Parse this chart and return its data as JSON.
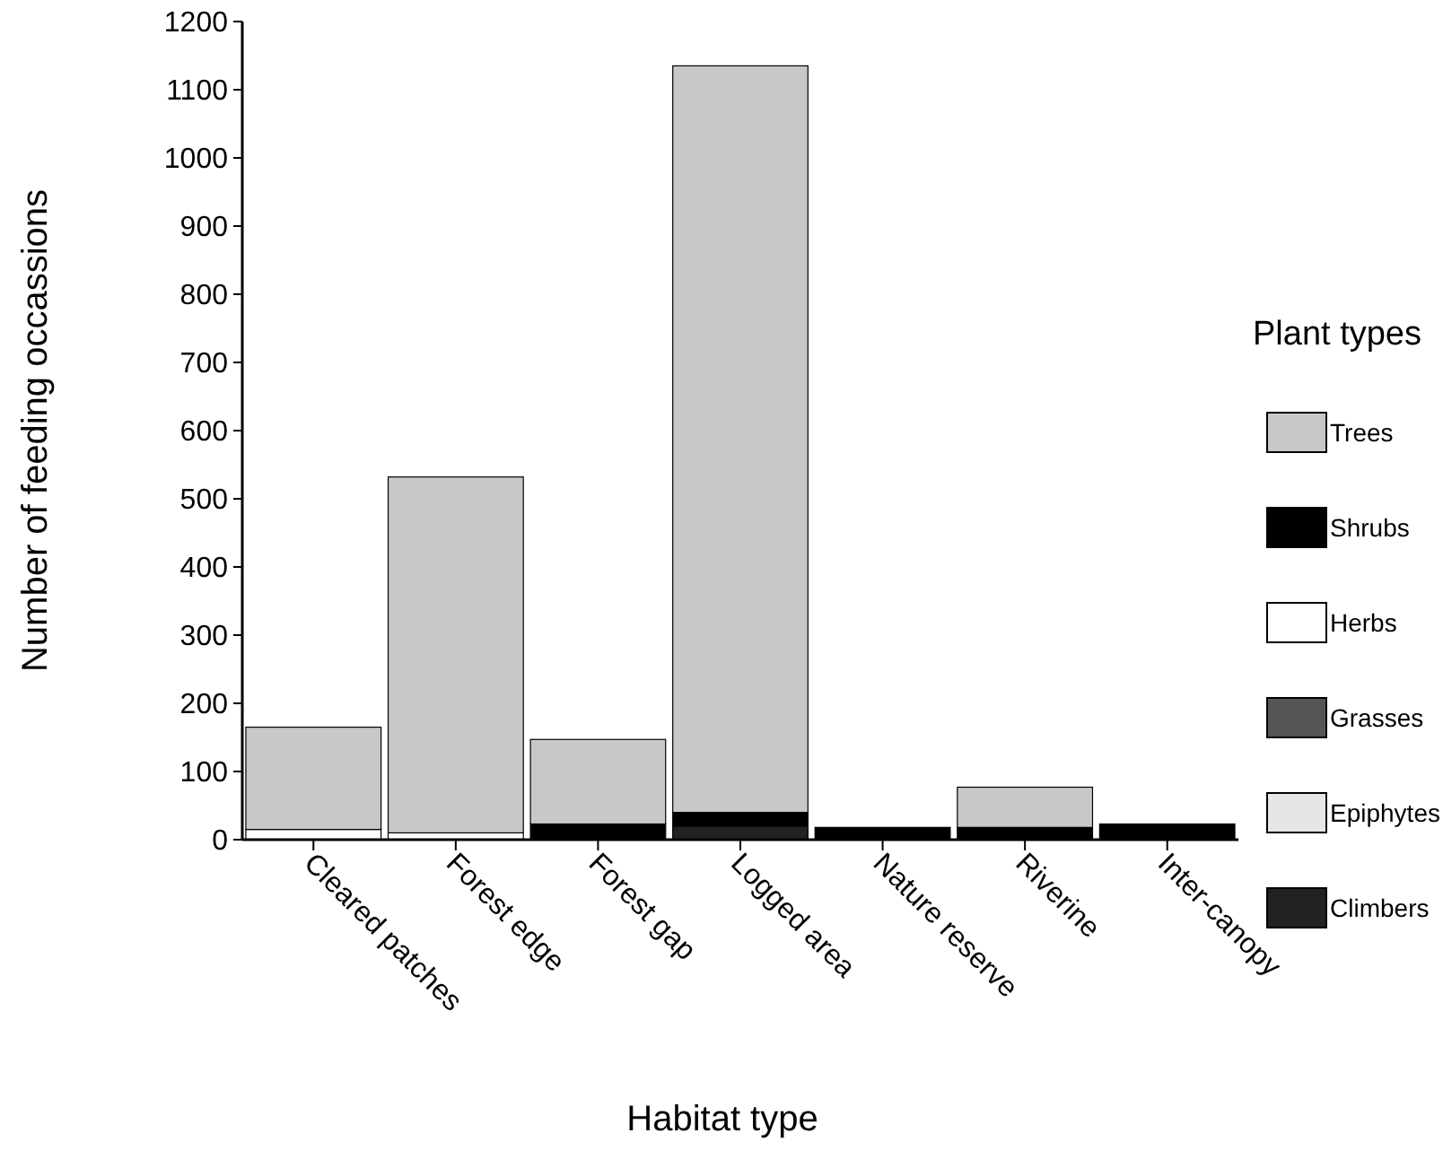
{
  "chart_data": {
    "type": "bar",
    "stacked": true,
    "xlabel": "Habitat type",
    "ylabel": "Number of feeding occassions",
    "legend_title": "Plant types",
    "legend": "right",
    "categories": [
      "Cleared patches",
      "Forest edge",
      "Forest gap",
      "Logged area",
      "Nature reserve",
      "Riverine",
      "Inter-canopy"
    ],
    "series": [
      {
        "name": "Climbers",
        "color": "#222222",
        "values": [
          null,
          null,
          null,
          20,
          null,
          null,
          null
        ]
      },
      {
        "name": "Epiphytes",
        "color": "#e6e6e6",
        "values": [
          null,
          null,
          null,
          null,
          null,
          null,
          null
        ]
      },
      {
        "name": "Grasses",
        "color": "#555555",
        "values": [
          null,
          null,
          null,
          null,
          null,
          null,
          null
        ]
      },
      {
        "name": "Herbs",
        "color": "#ffffff",
        "values": [
          15,
          10,
          null,
          null,
          null,
          null,
          null
        ]
      },
      {
        "name": "Shrubs",
        "color": "#000000",
        "values": [
          null,
          null,
          23,
          20,
          18,
          18,
          23
        ]
      },
      {
        "name": "Trees",
        "color": "#c8c8c8",
        "values": [
          150,
          522,
          124,
          1095,
          null,
          59,
          null
        ]
      }
    ],
    "ylim": [
      0,
      1200
    ],
    "yticks": [
      0,
      100,
      200,
      300,
      400,
      500,
      600,
      700,
      800,
      900,
      1000,
      1100,
      1200
    ]
  }
}
